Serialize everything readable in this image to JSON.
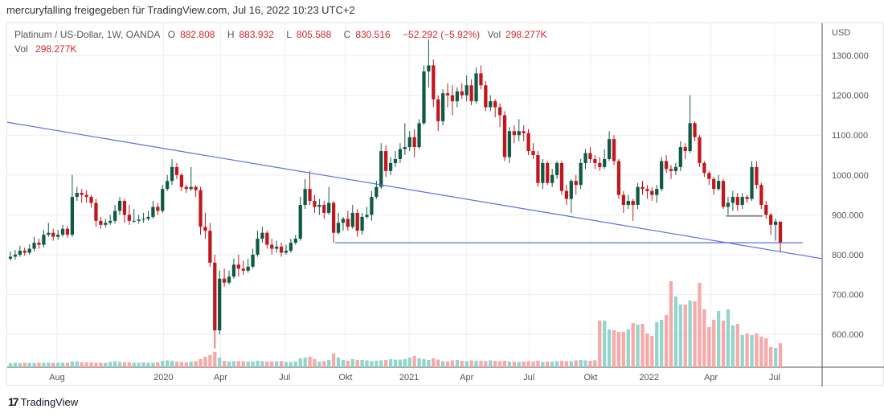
{
  "caption": "mercuryfalling freigegeben für TradingView.com, Jul 16, 2022 10:23 UTC+2",
  "legend": {
    "symbol": "Platinum / US-Dollar, 1W, OANDA",
    "o_label": "O",
    "o": "882.808",
    "h_label": "H",
    "h": "883.932",
    "l_label": "L",
    "l": "805.588",
    "c_label": "C",
    "c": "830.516",
    "change": "−52.292 (−5.92%)",
    "vol_label": "Vol",
    "vol": "298.277K",
    "vol2_label": "Vol",
    "vol2": "298.277K"
  },
  "footer": {
    "brand": "TradingView",
    "logo": "17"
  },
  "colors": {
    "up": "#0f5a45",
    "down": "#c2161d",
    "vol_up": "#92d5cb",
    "vol_down": "#f7a8a8",
    "line": "#5a6fe0",
    "grid": "#eeeeee"
  },
  "chart_data": {
    "type": "candlestick",
    "title": "Platinum / US-Dollar, 1W, OANDA",
    "currency_label": "USD",
    "ylim": [
      520,
      1370
    ],
    "y_ticks": [
      1300,
      1200,
      1100,
      1000,
      900,
      800,
      700,
      600
    ],
    "y_tick_labels": [
      "1300.000",
      "1200.000",
      "1100.000",
      "1000.000",
      "900.000",
      "800.000",
      "700.000",
      "600.000"
    ],
    "x_ticks": [
      {
        "label": "Aug",
        "index": 9.8
      },
      {
        "label": "2020",
        "index": 32.2
      },
      {
        "label": "Apr",
        "index": 44.2
      },
      {
        "label": "Jul",
        "index": 57.7
      },
      {
        "label": "Okt",
        "index": 70.5
      },
      {
        "label": "2021",
        "index": 83.9
      },
      {
        "label": "Apr",
        "index": 96.0
      },
      {
        "label": "Jul",
        "index": 109.1
      },
      {
        "label": "Okt",
        "index": 122.1
      },
      {
        "label": "2022",
        "index": 134.4
      },
      {
        "label": "Apr",
        "index": 147.4
      },
      {
        "label": "Jul",
        "index": 160.8
      }
    ],
    "candles_ohlc": [
      [
        790,
        808,
        785,
        795
      ],
      [
        795,
        812,
        788,
        800
      ],
      [
        800,
        822,
        795,
        810
      ],
      [
        810,
        818,
        798,
        805
      ],
      [
        805,
        826,
        800,
        815
      ],
      [
        815,
        845,
        808,
        830
      ],
      [
        830,
        840,
        815,
        825
      ],
      [
        825,
        862,
        818,
        850
      ],
      [
        850,
        880,
        845,
        855
      ],
      [
        855,
        865,
        835,
        845
      ],
      [
        845,
        862,
        838,
        850
      ],
      [
        850,
        875,
        845,
        865
      ],
      [
        865,
        872,
        842,
        850
      ],
      [
        850,
        1000,
        845,
        945
      ],
      [
        945,
        970,
        935,
        955
      ],
      [
        955,
        965,
        930,
        950
      ],
      [
        950,
        962,
        930,
        945
      ],
      [
        945,
        950,
        918,
        930
      ],
      [
        930,
        940,
        870,
        885
      ],
      [
        885,
        895,
        865,
        875
      ],
      [
        875,
        890,
        868,
        880
      ],
      [
        880,
        900,
        875,
        885
      ],
      [
        885,
        925,
        878,
        910
      ],
      [
        910,
        945,
        900,
        935
      ],
      [
        935,
        940,
        880,
        900
      ],
      [
        900,
        925,
        875,
        885
      ],
      [
        885,
        915,
        880,
        885
      ],
      [
        885,
        900,
        878,
        888
      ],
      [
        888,
        905,
        880,
        890
      ],
      [
        890,
        910,
        885,
        895
      ],
      [
        895,
        935,
        890,
        920
      ],
      [
        920,
        930,
        900,
        910
      ],
      [
        910,
        975,
        905,
        965
      ],
      [
        965,
        1000,
        960,
        985
      ],
      [
        985,
        1040,
        975,
        1020
      ],
      [
        1020,
        1030,
        990,
        1000
      ],
      [
        1000,
        1005,
        960,
        970
      ],
      [
        970,
        975,
        955,
        965
      ],
      [
        965,
        1020,
        960,
        970
      ],
      [
        970,
        975,
        945,
        962
      ],
      [
        962,
        970,
        850,
        870
      ],
      [
        870,
        905,
        840,
        860
      ],
      [
        860,
        880,
        770,
        780
      ],
      [
        780,
        800,
        565,
        610
      ],
      [
        610,
        760,
        600,
        740
      ],
      [
        740,
        765,
        720,
        730
      ],
      [
        730,
        760,
        725,
        745
      ],
      [
        745,
        790,
        740,
        775
      ],
      [
        775,
        800,
        745,
        765
      ],
      [
        765,
        785,
        750,
        760
      ],
      [
        760,
        790,
        755,
        770
      ],
      [
        770,
        815,
        765,
        800
      ],
      [
        800,
        860,
        795,
        840
      ],
      [
        840,
        870,
        830,
        855
      ],
      [
        855,
        860,
        815,
        825
      ],
      [
        825,
        840,
        800,
        815
      ],
      [
        815,
        835,
        805,
        820
      ],
      [
        820,
        830,
        795,
        805
      ],
      [
        805,
        825,
        800,
        810
      ],
      [
        810,
        840,
        805,
        830
      ],
      [
        830,
        850,
        825,
        840
      ],
      [
        840,
        945,
        835,
        925
      ],
      [
        925,
        990,
        915,
        965
      ],
      [
        965,
        1010,
        925,
        935
      ],
      [
        935,
        950,
        905,
        920
      ],
      [
        920,
        940,
        900,
        925
      ],
      [
        925,
        935,
        890,
        905
      ],
      [
        905,
        970,
        900,
        930
      ],
      [
        930,
        935,
        830,
        855
      ],
      [
        855,
        905,
        850,
        880
      ],
      [
        880,
        895,
        860,
        890
      ],
      [
        890,
        910,
        860,
        870
      ],
      [
        870,
        925,
        865,
        905
      ],
      [
        905,
        915,
        845,
        860
      ],
      [
        860,
        905,
        850,
        895
      ],
      [
        895,
        920,
        890,
        900
      ],
      [
        900,
        960,
        885,
        945
      ],
      [
        945,
        985,
        940,
        970
      ],
      [
        970,
        1080,
        965,
        1060
      ],
      [
        1060,
        1075,
        995,
        1010
      ],
      [
        1010,
        1045,
        1000,
        1030
      ],
      [
        1030,
        1060,
        1020,
        1040
      ],
      [
        1040,
        1080,
        1030,
        1065
      ],
      [
        1065,
        1130,
        1050,
        1070
      ],
      [
        1070,
        1110,
        1060,
        1095
      ],
      [
        1095,
        1115,
        1045,
        1070
      ],
      [
        1070,
        1140,
        1065,
        1130
      ],
      [
        1130,
        1275,
        1125,
        1260
      ],
      [
        1260,
        1340,
        1220,
        1275
      ],
      [
        1275,
        1290,
        1170,
        1190
      ],
      [
        1190,
        1200,
        1110,
        1135
      ],
      [
        1135,
        1215,
        1125,
        1205
      ],
      [
        1205,
        1230,
        1170,
        1200
      ],
      [
        1200,
        1225,
        1150,
        1185
      ],
      [
        1185,
        1220,
        1170,
        1210
      ],
      [
        1210,
        1230,
        1190,
        1200
      ],
      [
        1200,
        1250,
        1185,
        1225
      ],
      [
        1225,
        1240,
        1175,
        1185
      ],
      [
        1185,
        1270,
        1180,
        1255
      ],
      [
        1255,
        1275,
        1215,
        1225
      ],
      [
        1225,
        1235,
        1160,
        1170
      ],
      [
        1170,
        1200,
        1160,
        1185
      ],
      [
        1185,
        1190,
        1145,
        1170
      ],
      [
        1170,
        1180,
        1120,
        1150
      ],
      [
        1150,
        1160,
        1035,
        1045
      ],
      [
        1045,
        1120,
        1030,
        1110
      ],
      [
        1110,
        1125,
        1080,
        1100
      ],
      [
        1100,
        1140,
        1085,
        1110
      ],
      [
        1110,
        1125,
        1085,
        1105
      ],
      [
        1105,
        1115,
        1050,
        1060
      ],
      [
        1060,
        1080,
        1040,
        1050
      ],
      [
        1050,
        1060,
        970,
        980
      ],
      [
        980,
        1040,
        965,
        1030
      ],
      [
        1030,
        1035,
        975,
        980
      ],
      [
        980,
        1015,
        970,
        1000
      ],
      [
        1000,
        1035,
        990,
        1030
      ],
      [
        1030,
        1035,
        950,
        960
      ],
      [
        960,
        975,
        925,
        940
      ],
      [
        940,
        990,
        905,
        985
      ],
      [
        985,
        1000,
        950,
        975
      ],
      [
        975,
        1040,
        965,
        1030
      ],
      [
        1030,
        1065,
        1015,
        1055
      ],
      [
        1055,
        1070,
        1030,
        1040
      ],
      [
        1040,
        1050,
        1015,
        1030
      ],
      [
        1030,
        1045,
        1010,
        1020
      ],
      [
        1020,
        1065,
        1015,
        1040
      ],
      [
        1040,
        1110,
        1035,
        1090
      ],
      [
        1090,
        1100,
        1025,
        1035
      ],
      [
        1035,
        1040,
        940,
        950
      ],
      [
        950,
        960,
        905,
        925
      ],
      [
        925,
        950,
        915,
        935
      ],
      [
        935,
        940,
        885,
        925
      ],
      [
        925,
        980,
        915,
        970
      ],
      [
        970,
        985,
        950,
        965
      ],
      [
        965,
        975,
        940,
        960
      ],
      [
        960,
        970,
        935,
        950
      ],
      [
        950,
        975,
        930,
        965
      ],
      [
        965,
        1045,
        960,
        1035
      ],
      [
        1035,
        1050,
        1005,
        1015
      ],
      [
        1015,
        1025,
        990,
        1010
      ],
      [
        1010,
        1030,
        1000,
        1020
      ],
      [
        1020,
        1085,
        1010,
        1070
      ],
      [
        1070,
        1080,
        1040,
        1060
      ],
      [
        1060,
        1200,
        1055,
        1130
      ],
      [
        1130,
        1135,
        1085,
        1095
      ],
      [
        1095,
        1100,
        1020,
        1030
      ],
      [
        1030,
        1035,
        995,
        1005
      ],
      [
        1005,
        1010,
        975,
        990
      ],
      [
        990,
        995,
        950,
        965
      ],
      [
        965,
        1000,
        960,
        985
      ],
      [
        985,
        990,
        915,
        920
      ],
      [
        920,
        945,
        900,
        930
      ],
      [
        930,
        960,
        910,
        945
      ],
      [
        945,
        955,
        910,
        925
      ],
      [
        925,
        955,
        915,
        945
      ],
      [
        945,
        950,
        930,
        940
      ],
      [
        940,
        1035,
        935,
        1020
      ],
      [
        1020,
        1035,
        965,
        975
      ],
      [
        975,
        980,
        915,
        925
      ],
      [
        925,
        935,
        890,
        900
      ],
      [
        900,
        905,
        850,
        875
      ],
      [
        875,
        890,
        835,
        883
      ],
      [
        882.808,
        883.932,
        805.588,
        830.516
      ]
    ],
    "volume_k": [
      50,
      55,
      50,
      55,
      55,
      55,
      55,
      55,
      55,
      55,
      55,
      55,
      55,
      70,
      70,
      60,
      60,
      60,
      55,
      55,
      55,
      65,
      75,
      65,
      60,
      60,
      55,
      55,
      60,
      55,
      55,
      60,
      80,
      85,
      80,
      70,
      65,
      60,
      70,
      75,
      100,
      130,
      150,
      190,
      120,
      80,
      70,
      75,
      75,
      75,
      70,
      70,
      80,
      75,
      70,
      70,
      75,
      75,
      65,
      65,
      70,
      110,
      120,
      130,
      100,
      70,
      75,
      90,
      170,
      120,
      90,
      80,
      100,
      90,
      90,
      85,
      75,
      80,
      85,
      90,
      100,
      95,
      95,
      100,
      120,
      140,
      110,
      100,
      90,
      110,
      95,
      75,
      70,
      85,
      90,
      80,
      75,
      85,
      80,
      80,
      75,
      85,
      80,
      75,
      80,
      70,
      70,
      65,
      70,
      75,
      70,
      80,
      65,
      70,
      70,
      75,
      80,
      75,
      75,
      85,
      90,
      85,
      80,
      85,
      580,
      580,
      470,
      460,
      440,
      440,
      470,
      550,
      530,
      540,
      420,
      390,
      560,
      590,
      650,
      1070,
      880,
      780,
      780,
      830,
      820,
      1050,
      720,
      500,
      590,
      700,
      580,
      720,
      520,
      540,
      400,
      420,
      400,
      420,
      380,
      360,
      250,
      240,
      298.277
    ],
    "trendlines": [
      {
        "name": "descending-trendline",
        "from": [
          -2,
          1135
        ],
        "to": [
          170.8,
          790
        ]
      },
      {
        "name": "support-line",
        "from": [
          68.3,
          830
        ],
        "to": [
          166.7,
          830
        ]
      },
      {
        "name": "minor-support-line",
        "from": [
          150.6,
          897
        ],
        "to": [
          158.3,
          897
        ]
      }
    ]
  }
}
